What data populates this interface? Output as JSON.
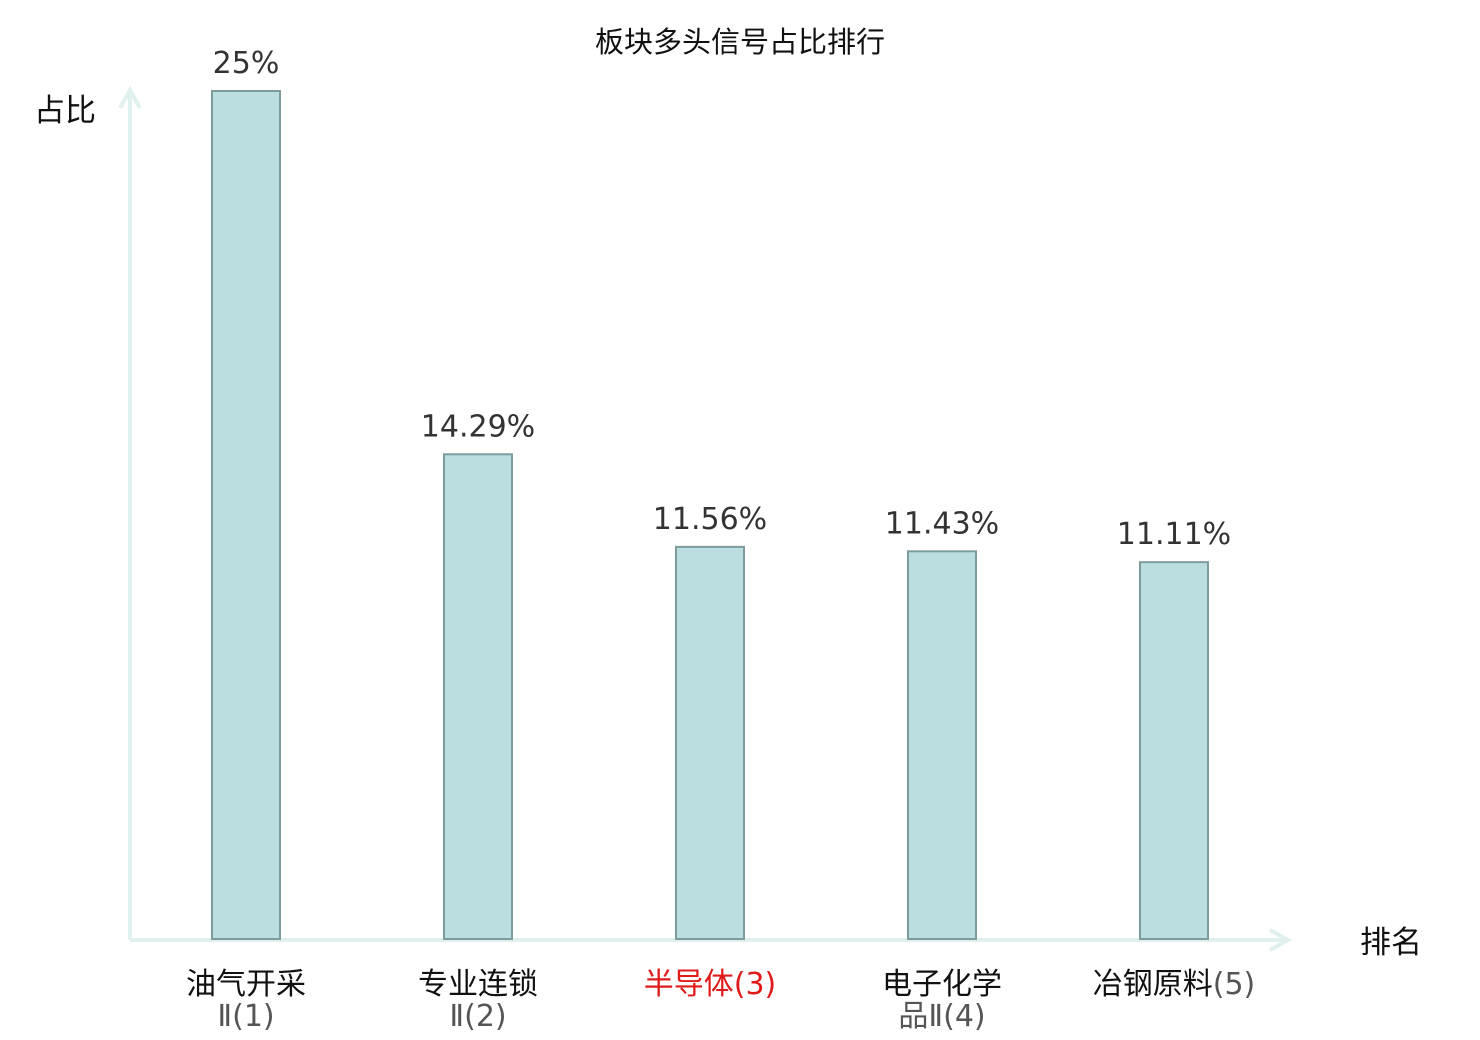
{
  "chart_data": {
    "type": "bar",
    "title": "板块多头信号占比排行",
    "ylabel": "占比",
    "xlabel": "排名",
    "ylim": [
      0,
      25
    ],
    "grid": false,
    "categories": [
      {
        "line1": "油气开采",
        "line2": "Ⅱ",
        "rank": "(1)"
      },
      {
        "line1": "专业连锁",
        "line2": "Ⅱ",
        "rank": "(2)"
      },
      {
        "line1": "半导体",
        "line2": "",
        "rank": "(3)"
      },
      {
        "line1": "电子化学",
        "line2": "品Ⅱ",
        "rank": "(4)"
      },
      {
        "line1": "冶钢原料",
        "line2": "",
        "rank": "(5)"
      }
    ],
    "values": [
      25,
      14.29,
      11.56,
      11.43,
      11.11
    ],
    "value_labels": [
      "25%",
      "14.29%",
      "11.56%",
      "11.43%",
      "11.11%"
    ],
    "highlight_index": 2,
    "colors": {
      "bar_fill": "#bbdfe0",
      "bar_stroke": "#7f9c9c",
      "axis": "#dff0ee",
      "highlight_text": "#e01a1a"
    }
  }
}
